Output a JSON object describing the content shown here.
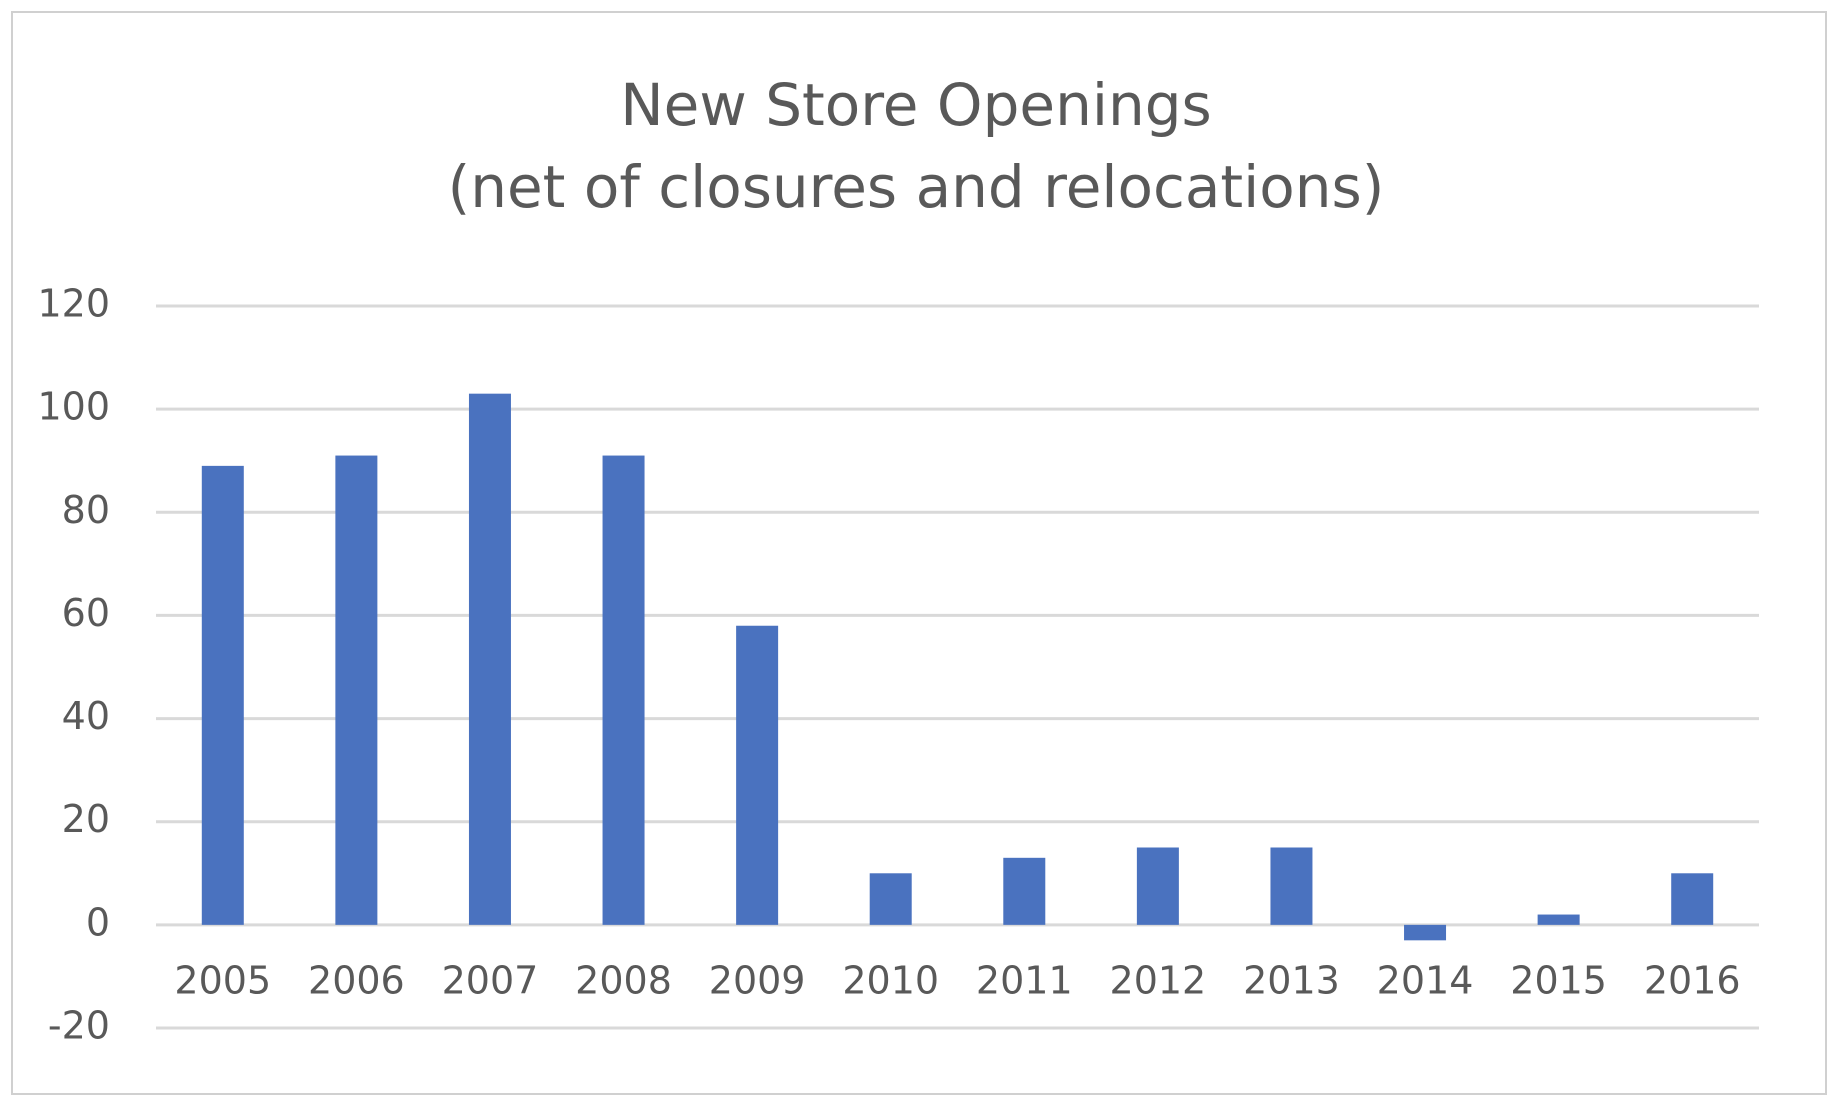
{
  "chart_data": {
    "type": "bar",
    "title": "New Store Openings",
    "subtitle": "(net of closures and relocations)",
    "categories": [
      "2005",
      "2006",
      "2007",
      "2008",
      "2009",
      "2010",
      "2011",
      "2012",
      "2013",
      "2014",
      "2015",
      "2016"
    ],
    "values": [
      89,
      91,
      103,
      91,
      58,
      10,
      13,
      15,
      15,
      -3,
      2,
      10
    ],
    "color": "#4a72bf",
    "ylim": [
      -20,
      120
    ],
    "yticks": [
      -20,
      0,
      20,
      40,
      60,
      80,
      100,
      120
    ],
    "grid": true
  }
}
